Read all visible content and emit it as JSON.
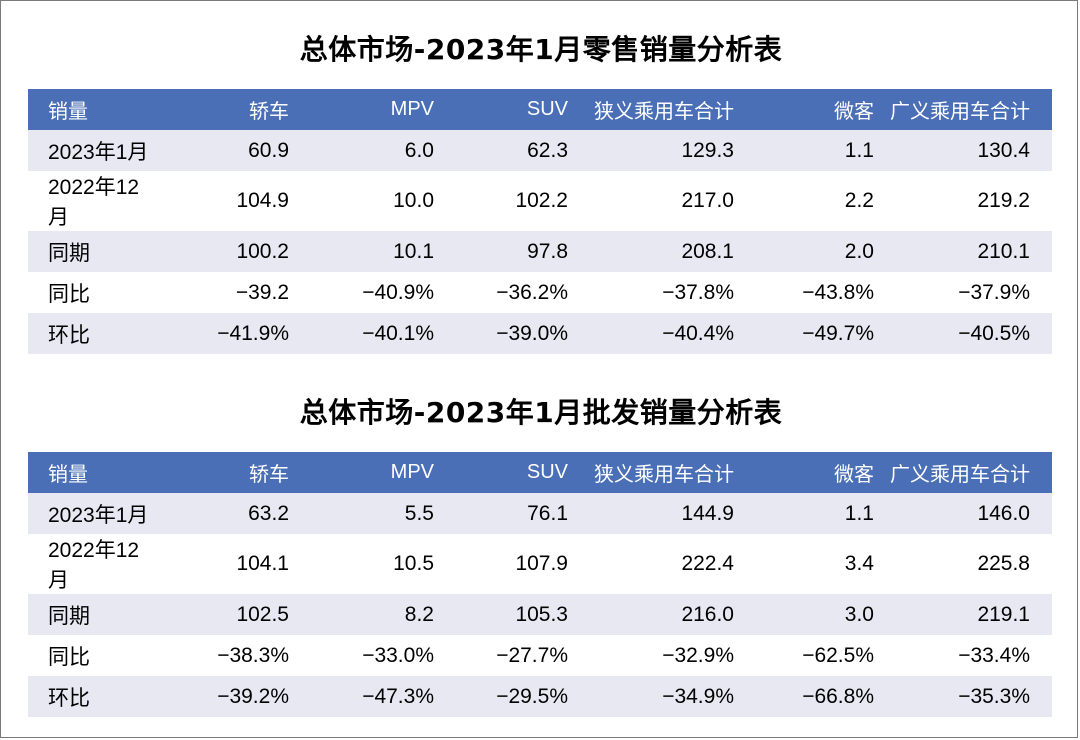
{
  "retail": {
    "title": "总体市场-2023年1月零售销量分析表",
    "headers": [
      "销量",
      "轿车",
      "MPV",
      "SUV",
      "狭义乘用车合计",
      "微客",
      "广义乘用车合计"
    ],
    "rows": [
      [
        "2023年1月",
        "60.9",
        "6.0",
        "62.3",
        "129.3",
        "1.1",
        "130.4"
      ],
      [
        "2022年12月",
        "104.9",
        "10.0",
        "102.2",
        "217.0",
        "2.2",
        "219.2"
      ],
      [
        "同期",
        "100.2",
        "10.1",
        "97.8",
        "208.1",
        "2.0",
        "210.1"
      ],
      [
        "同比",
        "−39.2",
        "−40.9%",
        "−36.2%",
        "−37.8%",
        "−43.8%",
        "−37.9%"
      ],
      [
        "环比",
        "−41.9%",
        "−40.1%",
        "−39.0%",
        "−40.4%",
        "−49.7%",
        "−40.5%"
      ]
    ]
  },
  "wholesale": {
    "title": "总体市场-2023年1月批发销量分析表",
    "headers": [
      "销量",
      "轿车",
      "MPV",
      "SUV",
      "狭义乘用车合计",
      "微客",
      "广义乘用车合计"
    ],
    "rows": [
      [
        "2023年1月",
        "63.2",
        "5.5",
        "76.1",
        "144.9",
        "1.1",
        "146.0"
      ],
      [
        "2022年12月",
        "104.1",
        "10.5",
        "107.9",
        "222.4",
        "3.4",
        "225.8"
      ],
      [
        "同期",
        "102.5",
        "8.2",
        "105.3",
        "216.0",
        "3.0",
        "219.1"
      ],
      [
        "同比",
        "−38.3%",
        "−33.0%",
        "−27.7%",
        "−32.9%",
        "−62.5%",
        "−33.4%"
      ],
      [
        "环比",
        "−39.2%",
        "−47.3%",
        "−29.5%",
        "−34.9%",
        "−66.8%",
        "−35.3%"
      ]
    ]
  },
  "colors": {
    "header_bg": "#4a6fb6",
    "stripe_bg": "#e8e8f3"
  }
}
